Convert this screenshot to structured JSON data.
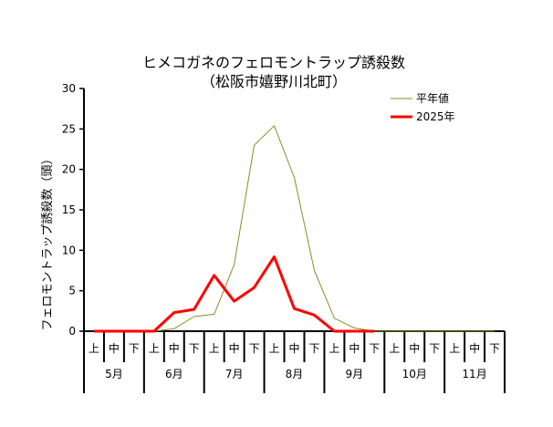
{
  "chart_data": {
    "type": "line",
    "title_line1": "ヒメコガネのフェロモントラップ誘殺数",
    "title_line2": "（松阪市嬉野川北町）",
    "ylabel": "フェロモントラップ誘殺数（頭）",
    "xlabel": "",
    "ylim": [
      0,
      30
    ],
    "yticks": [
      0,
      5,
      10,
      15,
      20,
      25,
      30
    ],
    "months": [
      "5月",
      "6月",
      "7月",
      "8月",
      "9月",
      "10月",
      "11月"
    ],
    "dekads": [
      "上",
      "中",
      "下"
    ],
    "legend_position": "top-right",
    "grid": false,
    "series": [
      {
        "name": "平年値",
        "color": "#8b8b2a",
        "width": 1,
        "values": [
          0,
          0,
          0,
          0,
          0.3,
          1.8,
          2.1,
          8.2,
          23.0,
          25.4,
          19.0,
          7.5,
          1.6,
          0.4,
          0,
          0,
          0,
          0,
          0,
          0,
          0
        ]
      },
      {
        "name": "2025年",
        "color": "#ff0000",
        "width": 3,
        "values": [
          0,
          0,
          0,
          0,
          2.3,
          2.7,
          6.9,
          3.7,
          5.4,
          9.2,
          2.8,
          2.0,
          0,
          0,
          0
        ]
      }
    ]
  }
}
